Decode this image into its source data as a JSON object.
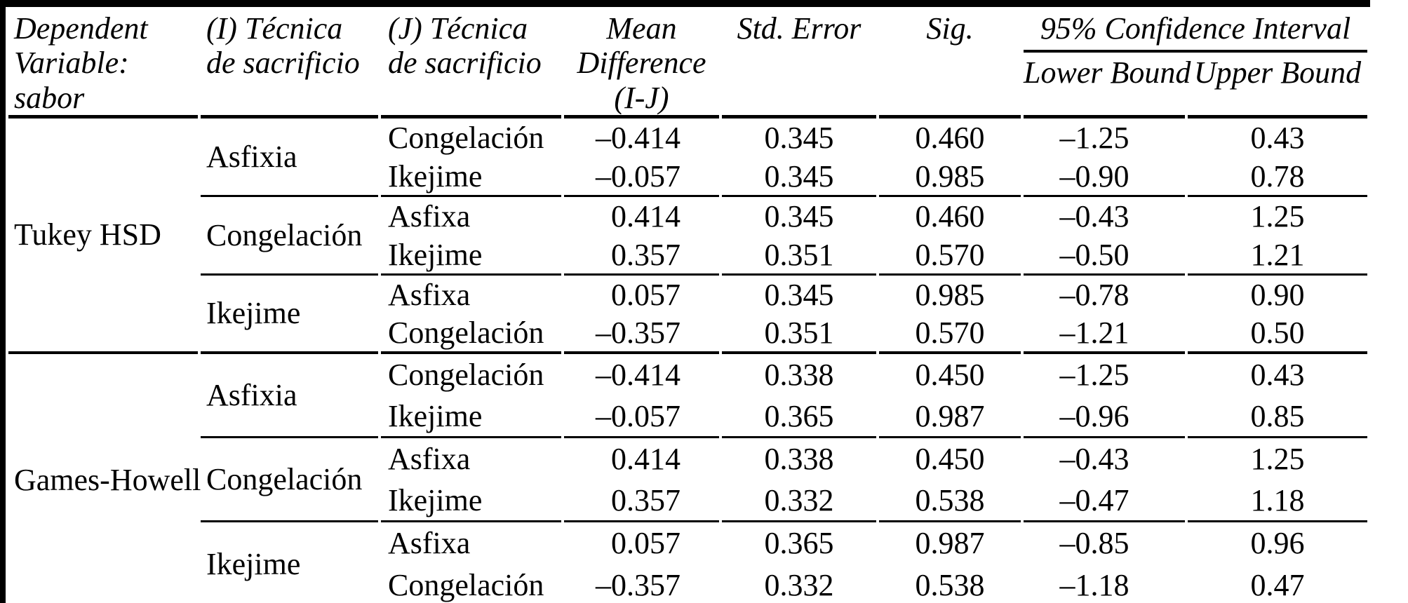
{
  "table": {
    "header": {
      "dependent_variable": "Dependent Variable: sabor",
      "i_technique": "(I) Técnica de sacrificio",
      "j_technique": "(J) Técnica de sacrificio",
      "mean_difference": "Mean Difference (I-J)",
      "std_error": "Std. Error",
      "sig": "Sig.",
      "confidence_interval": "95% Confidence Interval",
      "lower_bound": "Lower Bound",
      "upper_bound": "Upper Bound"
    },
    "sections": [
      {
        "method": "Tukey HSD",
        "groups": [
          {
            "i": "Asfixia",
            "rows": [
              {
                "j": "Congelación",
                "mean_difference": "–0.414",
                "std_error": "0.345",
                "sig": "0.460",
                "lower_bound": "–1.25",
                "upper_bound": "0.43"
              },
              {
                "j": "Ikejime",
                "mean_difference": "–0.057",
                "std_error": "0.345",
                "sig": "0.985",
                "lower_bound": "–0.90",
                "upper_bound": "0.78"
              }
            ]
          },
          {
            "i": "Congelación",
            "rows": [
              {
                "j": "Asfixa",
                "mean_difference": "0.414",
                "std_error": "0.345",
                "sig": "0.460",
                "lower_bound": "–0.43",
                "upper_bound": "1.25"
              },
              {
                "j": "Ikejime",
                "mean_difference": "0.357",
                "std_error": "0.351",
                "sig": "0.570",
                "lower_bound": "–0.50",
                "upper_bound": "1.21"
              }
            ]
          },
          {
            "i": "Ikejime",
            "rows": [
              {
                "j": "Asfixa",
                "mean_difference": "0.057",
                "std_error": "0.345",
                "sig": "0.985",
                "lower_bound": "–0.78",
                "upper_bound": "0.90"
              },
              {
                "j": "Congelación",
                "mean_difference": "–0.357",
                "std_error": "0.351",
                "sig": "0.570",
                "lower_bound": "–1.21",
                "upper_bound": "0.50"
              }
            ]
          }
        ]
      },
      {
        "method": "Games-Howell",
        "groups": [
          {
            "i": "Asfixia",
            "rows": [
              {
                "j": "Congelación",
                "mean_difference": "–0.414",
                "std_error": "0.338",
                "sig": "0.450",
                "lower_bound": "–1.25",
                "upper_bound": "0.43"
              },
              {
                "j": "Ikejime",
                "mean_difference": "–0.057",
                "std_error": "0.365",
                "sig": "0.987",
                "lower_bound": "–0.96",
                "upper_bound": "0.85"
              }
            ]
          },
          {
            "i": "Congelación",
            "rows": [
              {
                "j": "Asfixa",
                "mean_difference": "0.414",
                "std_error": "0.338",
                "sig": "0.450",
                "lower_bound": "–0.43",
                "upper_bound": "1.25"
              },
              {
                "j": "Ikejime",
                "mean_difference": "0.357",
                "std_error": "0.332",
                "sig": "0.538",
                "lower_bound": "–0.47",
                "upper_bound": "1.18"
              }
            ]
          },
          {
            "i": "Ikejime",
            "rows": [
              {
                "j": "Asfixa",
                "mean_difference": "0.057",
                "std_error": "0.365",
                "sig": "0.987",
                "lower_bound": "–0.85",
                "upper_bound": "0.96"
              },
              {
                "j": "Congelación",
                "mean_difference": "–0.357",
                "std_error": "0.332",
                "sig": "0.538",
                "lower_bound": "–1.18",
                "upper_bound": "0.47"
              }
            ]
          }
        ]
      }
    ]
  }
}
